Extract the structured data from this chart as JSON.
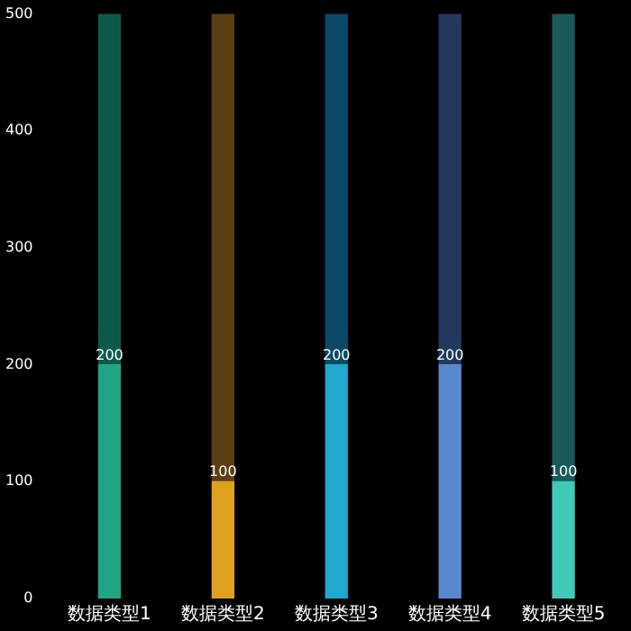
{
  "chart_data": {
    "type": "bar",
    "stacked": true,
    "categories": [
      "数据类型1",
      "数据类型2",
      "数据类型3",
      "数据类型4",
      "数据类型5"
    ],
    "series": [
      {
        "colors": [
          "#20a585",
          "#e0a020",
          "#20a8cf",
          "#5a88d0",
          "#40c8b8"
        ],
        "values": [
          200,
          100,
          200,
          200,
          100
        ],
        "value_labels": [
          "200",
          "100",
          "200",
          "200",
          "100"
        ]
      },
      {
        "colors": [
          "#0e5a48",
          "#5a4010",
          "#0a4a66",
          "#23385e",
          "#1a5a58"
        ],
        "values": [
          300,
          400,
          300,
          300,
          400
        ]
      }
    ],
    "ylim": [
      0,
      500
    ],
    "yticks": [
      0,
      100,
      200,
      300,
      400,
      500
    ],
    "grid": false,
    "legend": false
  }
}
